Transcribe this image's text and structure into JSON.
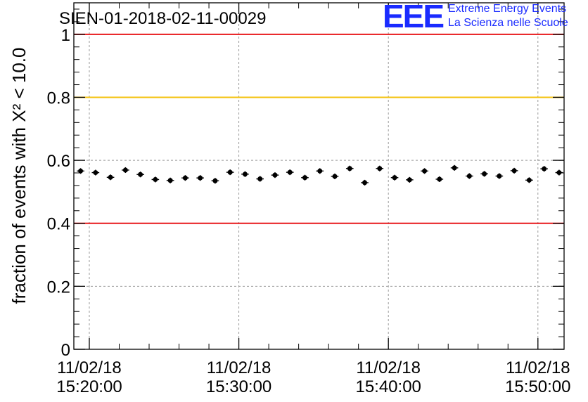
{
  "logo": {
    "text": "EEE",
    "line1": "Extreme Energy Events",
    "line2": "La Scienza nelle Scuole",
    "color": "#1a2bff"
  },
  "chart_data": {
    "type": "scatter",
    "title": "SIEN-01-2018-02-11-00029",
    "ylabel": "fraction of events with X² < 10.0",
    "xlim": [
      "15:18:58",
      "15:51:45"
    ],
    "ylim": [
      0,
      1.1
    ],
    "yticks": [
      0,
      0.2,
      0.4,
      0.6,
      0.8,
      1
    ],
    "ytick_labels": [
      "0",
      "0.2",
      "0.4",
      "0.6",
      "0.8",
      "1"
    ],
    "xticks": [
      "15:20:00",
      "15:30:00",
      "15:40:00",
      "15:50:00"
    ],
    "xtick_labels": [
      [
        "11/02/18",
        "15:20:00"
      ],
      [
        "11/02/18",
        "15:30:00"
      ],
      [
        "11/02/18",
        "15:40:00"
      ],
      [
        "11/02/18",
        "15:50:00"
      ]
    ],
    "grid": true,
    "reference_lines": [
      {
        "y": 1.0,
        "color": "#e8191c"
      },
      {
        "y": 0.8,
        "color": "#f4c20d"
      },
      {
        "y": 0.4,
        "color": "#e8191c"
      }
    ],
    "marker_color": "#000000",
    "series": [
      {
        "x": [
          "15:19:25",
          "15:20:25",
          "15:21:25",
          "15:22:25",
          "15:23:25",
          "15:24:25",
          "15:25:25",
          "15:26:25",
          "15:27:25",
          "15:28:25",
          "15:29:25",
          "15:30:25",
          "15:31:25",
          "15:32:25",
          "15:33:25",
          "15:34:25",
          "15:35:25",
          "15:36:25",
          "15:37:25",
          "15:38:25",
          "15:39:25",
          "15:40:25",
          "15:41:25",
          "15:42:25",
          "15:43:25",
          "15:44:25",
          "15:45:25",
          "15:46:25",
          "15:47:25",
          "15:48:25",
          "15:49:25",
          "15:50:25",
          "15:51:25"
        ],
        "y": [
          0.566,
          0.561,
          0.546,
          0.569,
          0.555,
          0.539,
          0.536,
          0.544,
          0.544,
          0.535,
          0.562,
          0.556,
          0.541,
          0.553,
          0.562,
          0.545,
          0.566,
          0.549,
          0.574,
          0.529,
          0.574,
          0.545,
          0.538,
          0.566,
          0.54,
          0.576,
          0.55,
          0.557,
          0.55,
          0.567,
          0.537,
          0.573,
          0.561
        ],
        "yerr": 0.009
      }
    ]
  }
}
